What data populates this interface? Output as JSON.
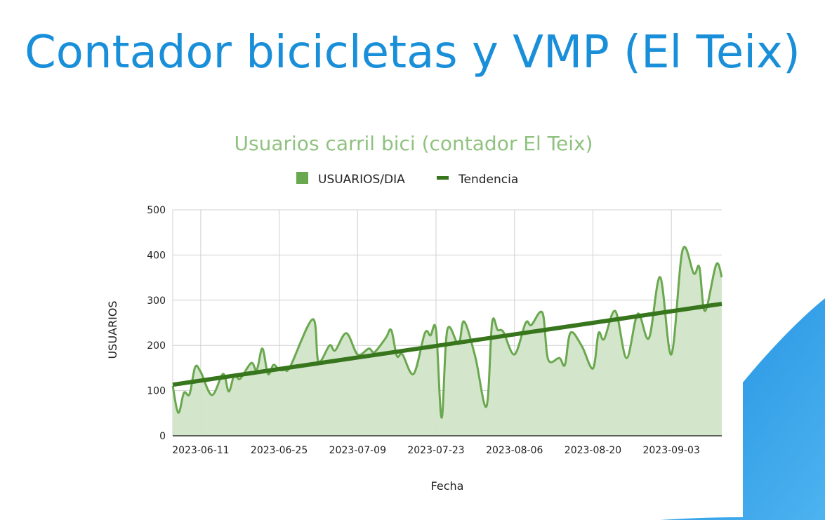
{
  "slide": {
    "title": "Contador bicicletas y VMP (El Teix)"
  },
  "colors": {
    "title": "#1a8fd9",
    "series": "#6aa84f",
    "area": "#d1e5c8",
    "trend": "#38761d",
    "chart_title": "#8fc27f",
    "decor_blue": "#2b9ae6"
  },
  "chart_data": {
    "type": "area",
    "title": "Usuarios carril bici (contador El Teix)",
    "xlabel": "Fecha",
    "ylabel": "USUARIOS",
    "ylim": [
      0,
      500
    ],
    "yticks": [
      "0",
      "100",
      "200",
      "300",
      "400",
      "500"
    ],
    "xticks": [
      "2023-06-11",
      "2023-06-25",
      "2023-07-09",
      "2023-07-23",
      "2023-08-06",
      "2023-08-20",
      "2023-09-03"
    ],
    "xlim": [
      "2023-06-06",
      "2023-09-12"
    ],
    "grid": true,
    "legend": "top",
    "series": [
      {
        "name": "USUARIOS/DIA",
        "kind": "area",
        "x": [
          "2023-06-06",
          "2023-06-07",
          "2023-06-08",
          "2023-06-09",
          "2023-06-10",
          "2023-06-11",
          "2023-06-13",
          "2023-06-15",
          "2023-06-16",
          "2023-06-17",
          "2023-06-18",
          "2023-06-20",
          "2023-06-21",
          "2023-06-22",
          "2023-06-23",
          "2023-06-24",
          "2023-06-25",
          "2023-06-26",
          "2023-06-27",
          "2023-07-01",
          "2023-07-02",
          "2023-07-04",
          "2023-07-05",
          "2023-07-07",
          "2023-07-09",
          "2023-07-11",
          "2023-07-12",
          "2023-07-14",
          "2023-07-15",
          "2023-07-16",
          "2023-07-17",
          "2023-07-19",
          "2023-07-21",
          "2023-07-22",
          "2023-07-23",
          "2023-07-24",
          "2023-07-25",
          "2023-07-27",
          "2023-07-28",
          "2023-07-30",
          "2023-08-01",
          "2023-08-02",
          "2023-08-03",
          "2023-08-04",
          "2023-08-06",
          "2023-08-08",
          "2023-08-09",
          "2023-08-11",
          "2023-08-12",
          "2023-08-14",
          "2023-08-15",
          "2023-08-16",
          "2023-08-18",
          "2023-08-20",
          "2023-08-21",
          "2023-08-22",
          "2023-08-24",
          "2023-08-26",
          "2023-08-28",
          "2023-08-30",
          "2023-09-01",
          "2023-09-03",
          "2023-09-05",
          "2023-09-07",
          "2023-09-08",
          "2023-09-09",
          "2023-09-11",
          "2023-09-12"
        ],
        "values": [
          110,
          51,
          95,
          92,
          152,
          141,
          90,
          137,
          98,
          135,
          126,
          161,
          146,
          193,
          137,
          157,
          146,
          146,
          154,
          258,
          165,
          200,
          189,
          227,
          180,
          193,
          185,
          216,
          234,
          177,
          180,
          137,
          227,
          222,
          234,
          40,
          234,
          203,
          253,
          175,
          65,
          250,
          234,
          230,
          180,
          250,
          245,
          272,
          169,
          172,
          157,
          228,
          199,
          149,
          227,
          214,
          276,
          172,
          270,
          216,
          351,
          180,
          411,
          359,
          373,
          276,
          379,
          351
        ]
      },
      {
        "name": "Tendencia",
        "kind": "line",
        "x": [
          "2023-06-06",
          "2023-09-12"
        ],
        "values": [
          113,
          292
        ]
      }
    ]
  }
}
